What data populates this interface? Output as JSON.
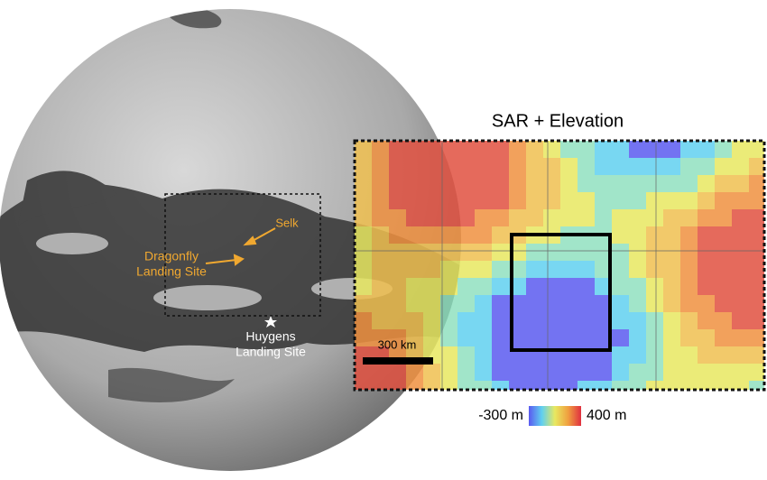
{
  "inset": {
    "title": "SAR + Elevation",
    "scale_label": "300 km"
  },
  "annotations": {
    "selk": "Selk",
    "dragonfly": [
      "Dragonfly",
      "Landing Site"
    ],
    "huygens": [
      "Huygens",
      "Landing Site"
    ]
  },
  "colorbar": {
    "min_label": "-300 m",
    "max_label": "400 m"
  }
}
